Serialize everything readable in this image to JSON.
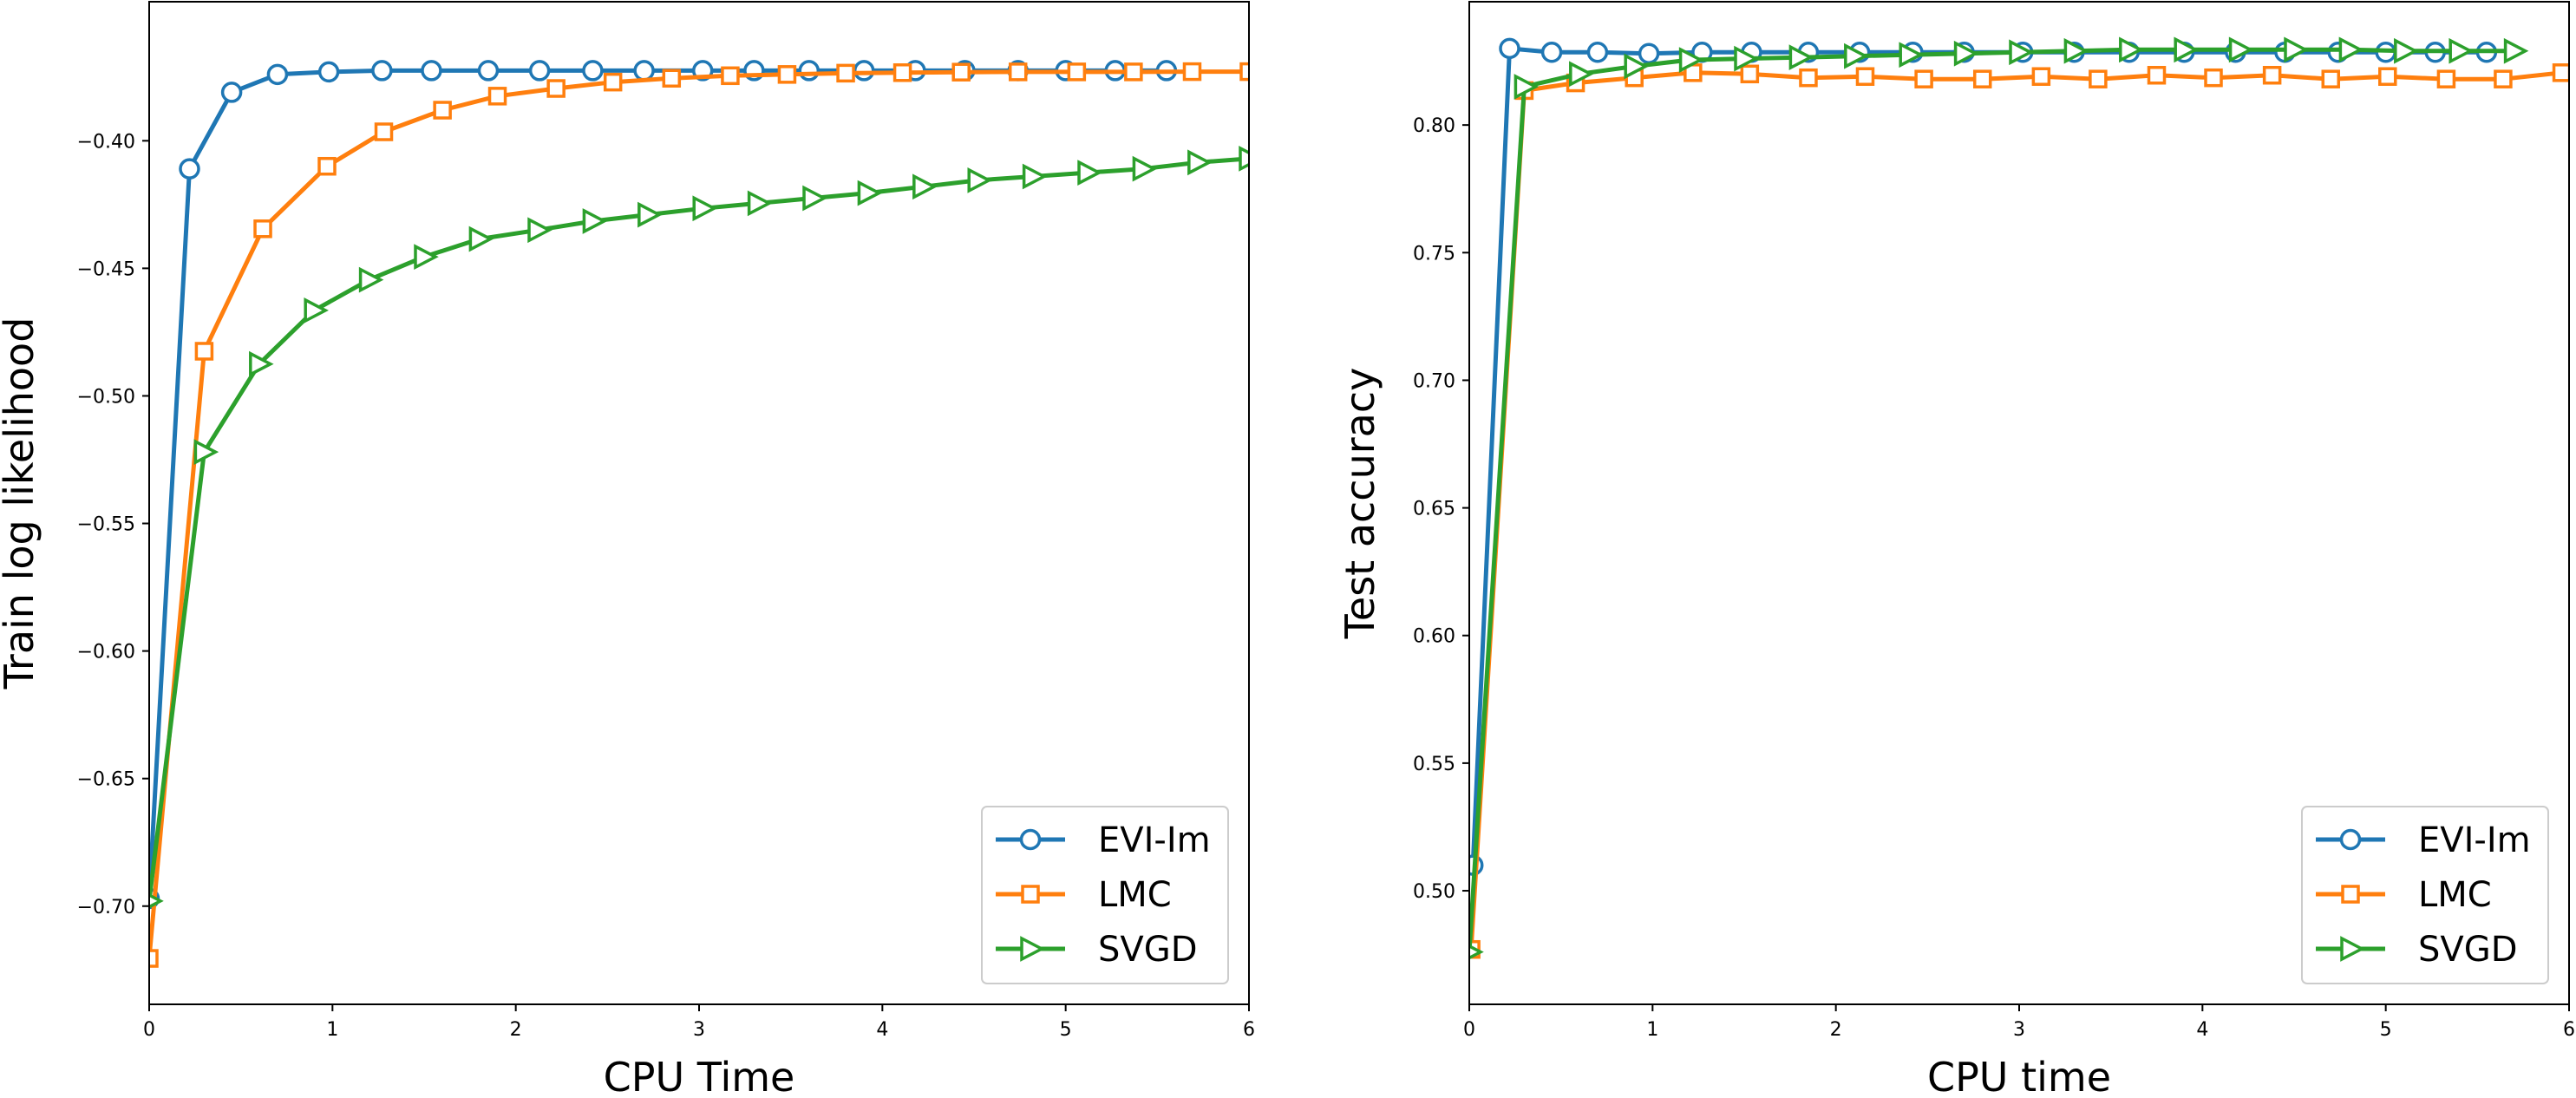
{
  "chart_data": [
    {
      "type": "line",
      "xlabel": "CPU Time",
      "ylabel": "Train log likelihood",
      "xlim": [
        0,
        6
      ],
      "ylim": [
        -0.7385,
        -0.3455
      ],
      "xticks": [
        0,
        1,
        2,
        3,
        4,
        5,
        6
      ],
      "xtick_labels": [
        "0",
        "1",
        "2",
        "3",
        "4",
        "5",
        "6"
      ],
      "yticks": [
        -0.7,
        -0.65,
        -0.6,
        -0.55,
        -0.5,
        -0.45,
        -0.4
      ],
      "ytick_labels": [
        "−0.70",
        "−0.65",
        "−0.60",
        "−0.55",
        "−0.50",
        "−0.45",
        "−0.40"
      ],
      "legend_position": "lower-right",
      "series": [
        {
          "name": "EVI-Im",
          "color": "#1f77b4",
          "marker": "circle",
          "x": [
            0,
            0.22,
            0.45,
            0.7,
            0.98,
            1.27,
            1.54,
            1.85,
            2.13,
            2.42,
            2.7,
            3.02,
            3.3,
            3.6,
            3.9,
            4.18,
            4.45,
            4.74,
            5.0,
            5.27,
            5.55
          ],
          "y": [
            -0.697,
            -0.411,
            -0.381,
            -0.374,
            -0.373,
            -0.3725,
            -0.3725,
            -0.3725,
            -0.3725,
            -0.3725,
            -0.3725,
            -0.3725,
            -0.3725,
            -0.3725,
            -0.3725,
            -0.3725,
            -0.3725,
            -0.3725,
            -0.3725,
            -0.3725,
            -0.3725
          ]
        },
        {
          "name": "LMC",
          "color": "#ff7f0e",
          "marker": "square",
          "x": [
            0,
            0.3,
            0.62,
            0.97,
            1.28,
            1.6,
            1.9,
            2.22,
            2.53,
            2.85,
            3.17,
            3.48,
            3.8,
            4.11,
            4.43,
            4.74,
            5.06,
            5.37,
            5.69,
            6.0
          ],
          "y": [
            -0.7205,
            -0.4825,
            -0.4345,
            -0.41,
            -0.3965,
            -0.388,
            -0.3825,
            -0.3795,
            -0.377,
            -0.3755,
            -0.3745,
            -0.374,
            -0.3735,
            -0.3733,
            -0.3731,
            -0.373,
            -0.373,
            -0.373,
            -0.3729,
            -0.3729
          ]
        },
        {
          "name": "SVGD",
          "color": "#2ca02c",
          "marker": "triangle-right",
          "x": [
            0,
            0.3,
            0.6,
            0.9,
            1.2,
            1.5,
            1.8,
            2.12,
            2.42,
            2.72,
            3.02,
            3.32,
            3.62,
            3.92,
            4.22,
            4.52,
            4.82,
            5.12,
            5.42,
            5.72,
            6.0
          ],
          "y": [
            -0.698,
            -0.522,
            -0.4875,
            -0.4665,
            -0.4545,
            -0.4455,
            -0.4385,
            -0.435,
            -0.4315,
            -0.429,
            -0.4265,
            -0.4245,
            -0.4225,
            -0.4205,
            -0.418,
            -0.4155,
            -0.414,
            -0.4125,
            -0.411,
            -0.4085,
            -0.407
          ]
        }
      ]
    },
    {
      "type": "line",
      "xlabel": "CPU time",
      "ylabel": "Test accuracy",
      "xlim": [
        0,
        6
      ],
      "ylim": [
        0.4555,
        0.8483
      ],
      "xticks": [
        0,
        1,
        2,
        3,
        4,
        5,
        6
      ],
      "xtick_labels": [
        "0",
        "1",
        "2",
        "3",
        "4",
        "5",
        "6"
      ],
      "yticks": [
        0.5,
        0.55,
        0.6,
        0.65,
        0.7,
        0.75,
        0.8
      ],
      "ytick_labels": [
        "0.50",
        "0.55",
        "0.60",
        "0.65",
        "0.70",
        "0.75",
        "0.80"
      ],
      "legend_position": "lower-right",
      "series": [
        {
          "name": "EVI-Im",
          "color": "#1f77b4",
          "marker": "circle",
          "x": [
            0.02,
            0.22,
            0.45,
            0.7,
            0.98,
            1.27,
            1.54,
            1.85,
            2.13,
            2.42,
            2.7,
            3.02,
            3.3,
            3.6,
            3.9,
            4.18,
            4.45,
            4.74,
            5.0,
            5.27,
            5.55
          ],
          "y": [
            0.51,
            0.83,
            0.8285,
            0.8285,
            0.828,
            0.8285,
            0.8285,
            0.8285,
            0.8285,
            0.8285,
            0.8285,
            0.8285,
            0.8285,
            0.8285,
            0.8285,
            0.8285,
            0.8285,
            0.8285,
            0.8285,
            0.8285,
            0.8285
          ]
        },
        {
          "name": "LMC",
          "color": "#ff7f0e",
          "marker": "square",
          "x": [
            0.01,
            0.3,
            0.58,
            0.9,
            1.22,
            1.53,
            1.85,
            2.16,
            2.48,
            2.8,
            3.12,
            3.43,
            3.75,
            4.06,
            4.38,
            4.7,
            5.01,
            5.33,
            5.64,
            5.96
          ],
          "y": [
            0.477,
            0.8135,
            0.8165,
            0.8185,
            0.8205,
            0.82,
            0.8185,
            0.819,
            0.818,
            0.818,
            0.819,
            0.818,
            0.8195,
            0.8185,
            0.8195,
            0.818,
            0.819,
            0.818,
            0.818,
            0.8205
          ]
        },
        {
          "name": "SVGD",
          "color": "#2ca02c",
          "marker": "triangle-right",
          "x": [
            0,
            0.3,
            0.6,
            0.9,
            1.2,
            1.5,
            1.8,
            2.1,
            2.4,
            2.7,
            3.0,
            3.3,
            3.6,
            3.9,
            4.2,
            4.5,
            4.8,
            5.1,
            5.4,
            5.7
          ],
          "y": [
            0.476,
            0.815,
            0.82,
            0.823,
            0.8255,
            0.826,
            0.8265,
            0.827,
            0.8275,
            0.828,
            0.8285,
            0.829,
            0.8295,
            0.8295,
            0.8295,
            0.8295,
            0.8295,
            0.829,
            0.829,
            0.829
          ]
        }
      ]
    }
  ]
}
